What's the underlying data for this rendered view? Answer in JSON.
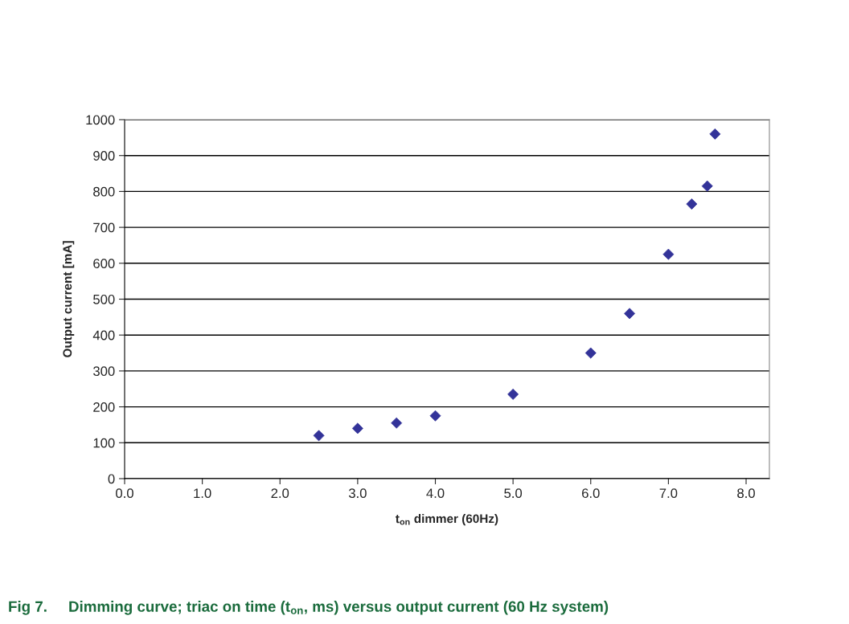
{
  "chart_data": {
    "type": "scatter",
    "xlabel": "t$_{on}$ dimmer (60Hz)",
    "ylabel": "Output current [mA]",
    "annotations": [
      "Fig 7.     Dimming curve; triac on time (t$_{on}$, ms) versus output current (60 Hz system)"
    ],
    "x": [
      2.5,
      3.0,
      3.5,
      4.0,
      5.0,
      6.0,
      6.5,
      7.0,
      7.3,
      7.5,
      7.6
    ],
    "series": [
      {
        "color": "#333399",
        "values": [
          120,
          140,
          155,
          175,
          235,
          350,
          460,
          625,
          765,
          815,
          960
        ]
      }
    ],
    "xlim": [
      0,
      8.3
    ],
    "ylim": [
      0,
      1000
    ],
    "xticks": [
      {
        "value": 0,
        "label": "0.0"
      },
      {
        "value": 1,
        "label": "1.0"
      },
      {
        "value": 2,
        "label": "2.0"
      },
      {
        "value": 3,
        "label": "3.0"
      },
      {
        "value": 4,
        "label": "4.0"
      },
      {
        "value": 5,
        "label": "5.0"
      },
      {
        "value": 6,
        "label": "6.0"
      },
      {
        "value": 7,
        "label": "7.0"
      },
      {
        "value": 8,
        "label": "8.0"
      }
    ],
    "yticks": [
      0,
      100,
      200,
      300,
      400,
      500,
      600,
      700,
      800,
      900,
      1000
    ],
    "grid": "y",
    "marker": "diamond",
    "legend": false
  }
}
